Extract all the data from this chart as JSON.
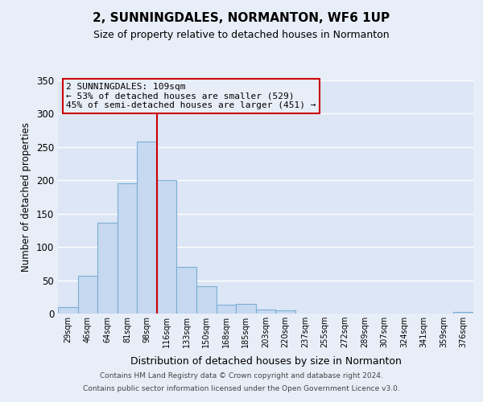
{
  "title": "2, SUNNINGDALES, NORMANTON, WF6 1UP",
  "subtitle": "Size of property relative to detached houses in Normanton",
  "xlabel": "Distribution of detached houses by size in Normanton",
  "ylabel": "Number of detached properties",
  "bin_labels": [
    "29sqm",
    "46sqm",
    "64sqm",
    "81sqm",
    "98sqm",
    "116sqm",
    "133sqm",
    "150sqm",
    "168sqm",
    "185sqm",
    "203sqm",
    "220sqm",
    "237sqm",
    "255sqm",
    "272sqm",
    "289sqm",
    "307sqm",
    "324sqm",
    "341sqm",
    "359sqm",
    "376sqm"
  ],
  "bar_values": [
    10,
    57,
    136,
    195,
    258,
    200,
    70,
    41,
    13,
    14,
    6,
    5,
    0,
    0,
    0,
    0,
    0,
    0,
    0,
    0,
    2
  ],
  "bar_color": "#c6d9f0",
  "bar_edge_color": "#7bafd4",
  "vline_x": 5,
  "vline_color": "#cc0000",
  "ylim": [
    0,
    350
  ],
  "yticks": [
    0,
    50,
    100,
    150,
    200,
    250,
    300,
    350
  ],
  "annotation_title": "2 SUNNINGDALES: 109sqm",
  "annotation_line1": "← 53% of detached houses are smaller (529)",
  "annotation_line2": "45% of semi-detached houses are larger (451) →",
  "annotation_box_color": "#cc0000",
  "footer1": "Contains HM Land Registry data © Crown copyright and database right 2024.",
  "footer2": "Contains public sector information licensed under the Open Government Licence v3.0.",
  "background_color": "#e8eef8",
  "plot_bg_color": "#dce6f5",
  "grid_color": "#ffffff"
}
